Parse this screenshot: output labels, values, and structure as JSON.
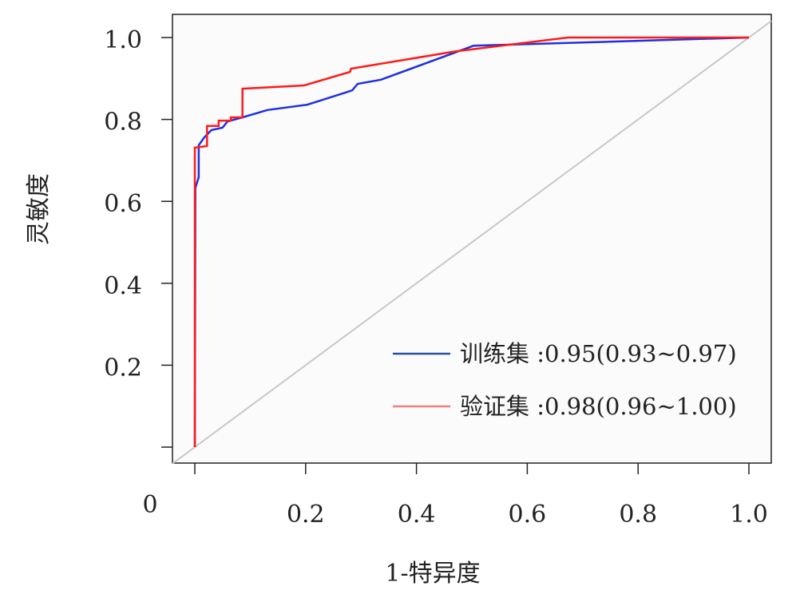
{
  "chart_data": {
    "type": "line",
    "title": "",
    "xlabel": "1-特异度",
    "ylabel": "灵敏度",
    "xlim": [
      0,
      1
    ],
    "ylim": [
      0,
      1
    ],
    "grid": false,
    "legend_position": "bottom-right",
    "origin_label": "0",
    "x_ticks": [
      0.2,
      0.4,
      0.6,
      0.8,
      1.0
    ],
    "x_tick_labels": [
      "0.2",
      "0.4",
      "0.6",
      "0.8",
      "1.0"
    ],
    "y_ticks": [
      0.2,
      0.4,
      0.6,
      0.8,
      1.0
    ],
    "y_tick_labels": [
      "0.2",
      "0.4",
      "0.6",
      "0.8",
      "1.0"
    ],
    "reference_line": {
      "x": [
        0,
        1
      ],
      "y": [
        0,
        1
      ],
      "color": "#c8c8c8"
    },
    "series": [
      {
        "name": "训练集",
        "legend_label": "训练集 :0.95(0.93~0.97)",
        "color": "#1f2fe0",
        "legend_color": "#2b4fa8",
        "x": [
          0,
          0.001,
          0.007,
          0.007,
          0.017,
          0.03,
          0.05,
          0.059,
          0.086,
          0.131,
          0.203,
          0.268,
          0.284,
          0.294,
          0.336,
          0.503,
          1.0
        ],
        "y": [
          0,
          0.633,
          0.659,
          0.737,
          0.756,
          0.774,
          0.78,
          0.795,
          0.805,
          0.823,
          0.836,
          0.864,
          0.871,
          0.887,
          0.897,
          0.98,
          1.0
        ]
      },
      {
        "name": "验证集",
        "legend_label": "验证集 :0.98(0.96~1.00)",
        "color": "#ff1a1a",
        "legend_color": "#ee8080",
        "x": [
          0,
          0,
          0.022,
          0.022,
          0.043,
          0.043,
          0.065,
          0.065,
          0.086,
          0.086,
          0.197,
          0.28,
          0.282,
          0.47,
          0.673,
          1.0
        ],
        "y": [
          0,
          0.731,
          0.735,
          0.784,
          0.784,
          0.797,
          0.797,
          0.805,
          0.805,
          0.875,
          0.883,
          0.916,
          0.924,
          0.966,
          1.0,
          1.0
        ]
      }
    ]
  }
}
